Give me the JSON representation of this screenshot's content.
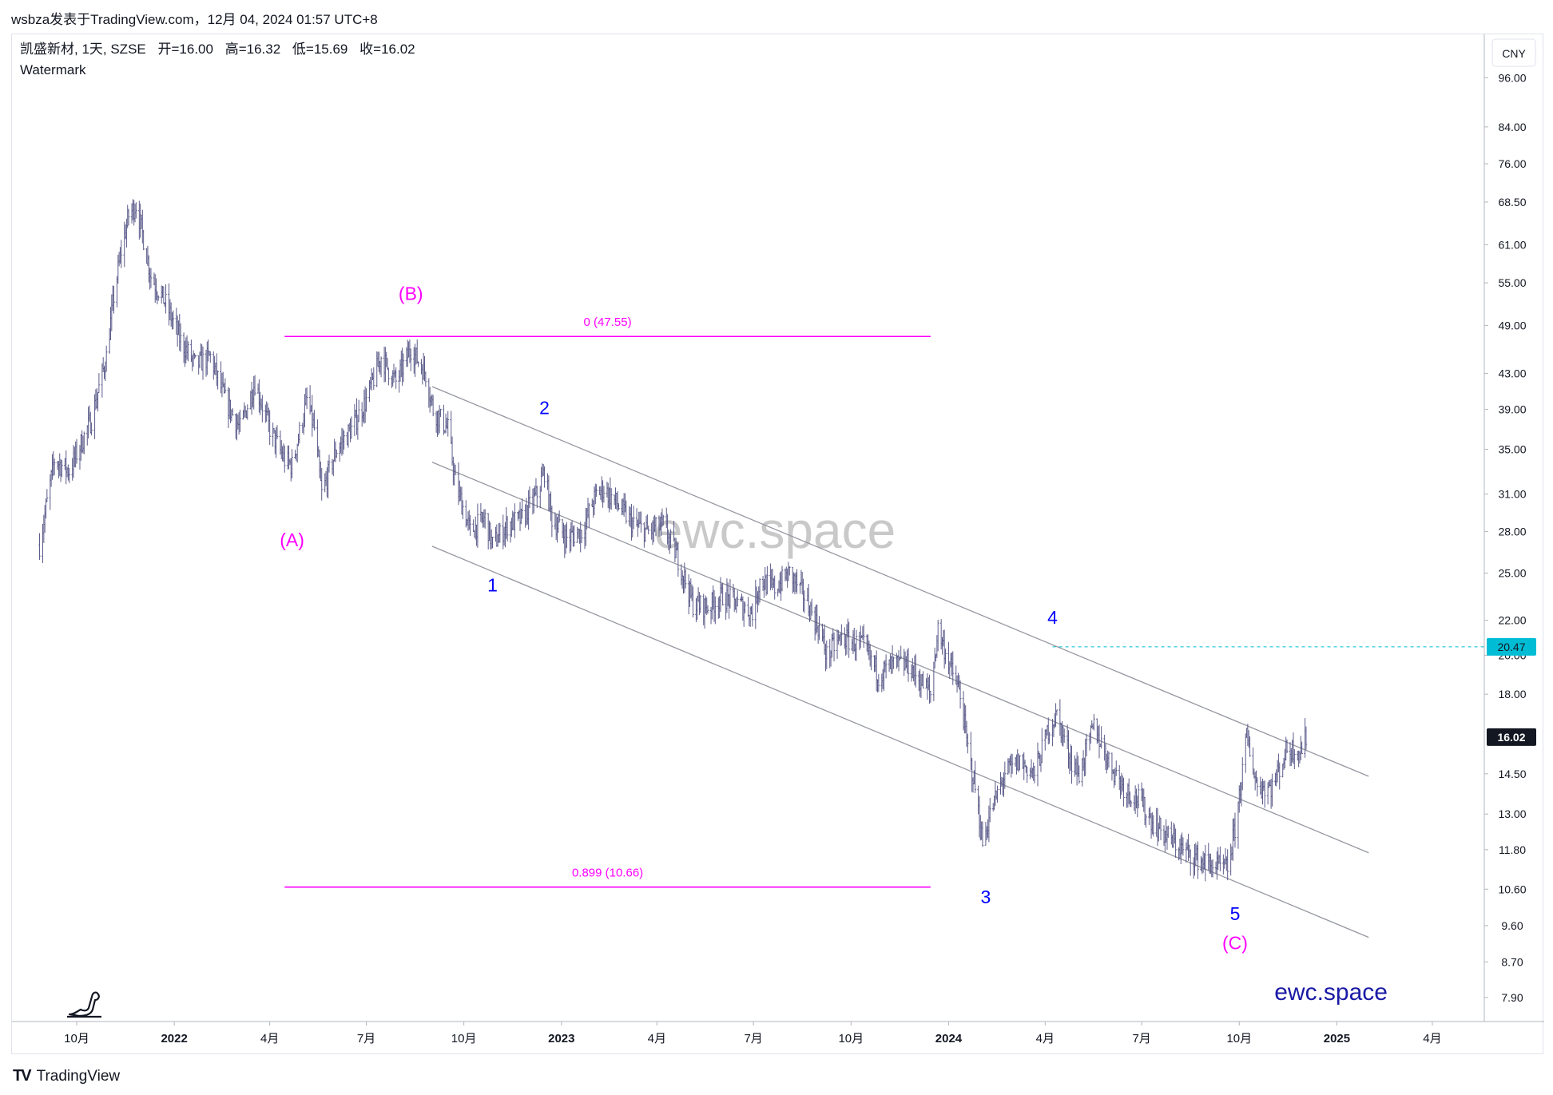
{
  "header": {
    "caption": "wsbza发表于TradingView.com，12月 04, 2024 01:57 UTC+8"
  },
  "legend": {
    "symbol_line": "凯盛新材, 1天, SZSE",
    "ohlc": [
      {
        "label": "开",
        "value": "=16.00"
      },
      {
        "label": "高",
        "value": "=16.32"
      },
      {
        "label": "低",
        "value": "=15.69"
      },
      {
        "label": "收",
        "value": "=16.02"
      }
    ],
    "indicator": "Watermark"
  },
  "watermark": "ewc.space",
  "brand_text": "ewc.space",
  "footer": {
    "logo": "TV",
    "brand": "TradingView"
  },
  "colors": {
    "bars": "#5b5b8a",
    "wave_magenta": "#ff00ff",
    "wave_blue": "#0000ff",
    "channel": "#9598a1",
    "last_price_bg": "#131722",
    "marker_bg": "#00bcd4",
    "marker_line": "#00bcd4"
  },
  "chart_data": {
    "type": "ohlc",
    "currency": "CNY",
    "scale": "log",
    "ylim": [
      7.4,
      108
    ],
    "x_axis": {
      "range": [
        "2021-08-01",
        "2025-05-20"
      ],
      "ticks": [
        {
          "date": "2021-10-01",
          "label": "10月"
        },
        {
          "date": "2022-01-01",
          "label": "2022"
        },
        {
          "date": "2022-04-01",
          "label": "4月"
        },
        {
          "date": "2022-07-01",
          "label": "7月"
        },
        {
          "date": "2022-10-01",
          "label": "10月"
        },
        {
          "date": "2023-01-01",
          "label": "2023"
        },
        {
          "date": "2023-04-01",
          "label": "4月"
        },
        {
          "date": "2023-07-01",
          "label": "7月"
        },
        {
          "date": "2023-10-01",
          "label": "10月"
        },
        {
          "date": "2024-01-01",
          "label": "2024"
        },
        {
          "date": "2024-04-01",
          "label": "4月"
        },
        {
          "date": "2024-07-01",
          "label": "7月"
        },
        {
          "date": "2024-10-01",
          "label": "10月"
        },
        {
          "date": "2025-01-01",
          "label": "2025"
        },
        {
          "date": "2025-04-01",
          "label": "4月"
        }
      ]
    },
    "y_axis_ticks": [
      "96.00",
      "84.00",
      "76.00",
      "68.50",
      "61.00",
      "55.00",
      "49.00",
      "43.00",
      "39.00",
      "35.00",
      "31.00",
      "28.00",
      "25.00",
      "22.00",
      "20.00",
      "18.00",
      "14.50",
      "13.00",
      "11.80",
      "10.60",
      "9.60",
      "8.70",
      "7.90"
    ],
    "last_price": {
      "value": 16.02,
      "label": "16.02"
    },
    "marker_price": {
      "value": 20.47,
      "label": "20.47",
      "from": "2024-04-08"
    },
    "price_path": [
      [
        "2021-08-27",
        27.0
      ],
      [
        "2021-09-10",
        34.0
      ],
      [
        "2021-09-24",
        33.0
      ],
      [
        "2021-10-15",
        38.0
      ],
      [
        "2021-10-29",
        45.0
      ],
      [
        "2021-11-05",
        53.0
      ],
      [
        "2021-11-12",
        60.0
      ],
      [
        "2021-11-19",
        66.0
      ],
      [
        "2021-11-26",
        68.0
      ],
      [
        "2021-12-03",
        62.0
      ],
      [
        "2021-12-10",
        56.0
      ],
      [
        "2021-12-24",
        52.0
      ],
      [
        "2022-01-07",
        47.0
      ],
      [
        "2022-01-21",
        44.0
      ],
      [
        "2022-02-04",
        45.0
      ],
      [
        "2022-02-18",
        40.0
      ],
      [
        "2022-03-04",
        37.0
      ],
      [
        "2022-03-18",
        42.0
      ],
      [
        "2022-04-01",
        37.0
      ],
      [
        "2022-04-15",
        34.0
      ],
      [
        "2022-04-22",
        33.5
      ],
      [
        "2022-05-06",
        40.0
      ],
      [
        "2022-05-13",
        37.0
      ],
      [
        "2022-05-20",
        31.0
      ],
      [
        "2022-06-03",
        35.0
      ],
      [
        "2022-06-17",
        37.0
      ],
      [
        "2022-07-01",
        40.0
      ],
      [
        "2022-07-15",
        45.0
      ],
      [
        "2022-07-29",
        42.0
      ],
      [
        "2022-08-12",
        46.0
      ],
      [
        "2022-08-26",
        43.0
      ],
      [
        "2022-09-02",
        39.0
      ],
      [
        "2022-09-16",
        37.0
      ],
      [
        "2022-09-23",
        32.0
      ],
      [
        "2022-10-07",
        28.0
      ],
      [
        "2022-10-21",
        29.0
      ],
      [
        "2022-10-28",
        27.0
      ],
      [
        "2022-11-11",
        28.5
      ],
      [
        "2022-11-25",
        29.0
      ],
      [
        "2022-12-09",
        31.0
      ],
      [
        "2022-12-16",
        33.0
      ],
      [
        "2022-12-23",
        29.0
      ],
      [
        "2023-01-06",
        27.5
      ],
      [
        "2023-01-20",
        28.0
      ],
      [
        "2023-02-03",
        31.0
      ],
      [
        "2023-02-10",
        31.5
      ],
      [
        "2023-02-24",
        30.0
      ],
      [
        "2023-03-10",
        28.5
      ],
      [
        "2023-03-24",
        28.0
      ],
      [
        "2023-04-07",
        28.5
      ],
      [
        "2023-04-21",
        26.0
      ],
      [
        "2023-05-05",
        23.0
      ],
      [
        "2023-05-19",
        22.8
      ],
      [
        "2023-06-02",
        23.5
      ],
      [
        "2023-06-16",
        23.0
      ],
      [
        "2023-06-30",
        22.5
      ],
      [
        "2023-07-07",
        24.5
      ],
      [
        "2023-07-21",
        24.0
      ],
      [
        "2023-08-04",
        25.0
      ],
      [
        "2023-08-18",
        23.5
      ],
      [
        "2023-09-01",
        21.5
      ],
      [
        "2023-09-08",
        20.0
      ],
      [
        "2023-09-22",
        21.0
      ],
      [
        "2023-10-13",
        20.5
      ],
      [
        "2023-10-27",
        19.0
      ],
      [
        "2023-11-10",
        19.5
      ],
      [
        "2023-11-24",
        19.5
      ],
      [
        "2023-12-08",
        18.5
      ],
      [
        "2023-12-15",
        18.0
      ],
      [
        "2023-12-22",
        21.5
      ],
      [
        "2024-01-05",
        19.0
      ],
      [
        "2024-01-12",
        18.0
      ],
      [
        "2024-01-19",
        15.5
      ],
      [
        "2024-01-26",
        14.0
      ],
      [
        "2024-02-02",
        12.0
      ],
      [
        "2024-02-09",
        13.0
      ],
      [
        "2024-02-23",
        14.5
      ],
      [
        "2024-03-08",
        15.0
      ],
      [
        "2024-03-22",
        14.5
      ],
      [
        "2024-04-05",
        16.5
      ],
      [
        "2024-04-12",
        17.0
      ],
      [
        "2024-04-26",
        15.0
      ],
      [
        "2024-05-03",
        14.5
      ],
      [
        "2024-05-17",
        16.5
      ],
      [
        "2024-05-31",
        15.0
      ],
      [
        "2024-06-14",
        14.0
      ],
      [
        "2024-06-28",
        13.5
      ],
      [
        "2024-07-12",
        12.7
      ],
      [
        "2024-07-26",
        12.2
      ],
      [
        "2024-08-09",
        11.8
      ],
      [
        "2024-08-23",
        11.5
      ],
      [
        "2024-09-06",
        11.3
      ],
      [
        "2024-09-20",
        11.2
      ],
      [
        "2024-09-27",
        12.5
      ],
      [
        "2024-10-08",
        16.0
      ],
      [
        "2024-10-18",
        14.0
      ],
      [
        "2024-11-01",
        14.0
      ],
      [
        "2024-11-15",
        15.5
      ],
      [
        "2024-11-29",
        15.5
      ],
      [
        "2024-12-03",
        16.02
      ]
    ],
    "wave_labels": [
      {
        "text": "(A)",
        "date": "2022-04-22",
        "price": 26.9,
        "color": "magenta"
      },
      {
        "text": "(B)",
        "date": "2022-08-12",
        "price": 52.5,
        "color": "magenta"
      },
      {
        "text": "(C)",
        "date": "2024-09-27",
        "price": 9.0,
        "color": "magenta"
      },
      {
        "text": "1",
        "date": "2022-10-28",
        "price": 23.8,
        "color": "blue"
      },
      {
        "text": "2",
        "date": "2022-12-16",
        "price": 38.5,
        "color": "blue"
      },
      {
        "text": "3",
        "date": "2024-02-05",
        "price": 10.2,
        "color": "blue"
      },
      {
        "text": "4",
        "date": "2024-04-08",
        "price": 21.8,
        "color": "blue"
      },
      {
        "text": "5",
        "date": "2024-09-27",
        "price": 9.75,
        "color": "blue"
      }
    ],
    "fib_levels": [
      {
        "label": "0 (47.55)",
        "price": 47.55,
        "from": "2022-04-15",
        "to": "2023-12-15"
      },
      {
        "label": "0.899 (10.66)",
        "price": 10.66,
        "from": "2022-04-15",
        "to": "2023-12-15"
      }
    ],
    "channel_lines": [
      {
        "from": [
          "2022-09-01",
          41.5
        ],
        "to": [
          "2025-01-31",
          14.4
        ]
      },
      {
        "from": [
          "2022-09-01",
          33.8
        ],
        "to": [
          "2025-01-31",
          11.7
        ]
      },
      {
        "from": [
          "2022-09-01",
          26.9
        ],
        "to": [
          "2025-01-31",
          9.3
        ]
      }
    ]
  }
}
